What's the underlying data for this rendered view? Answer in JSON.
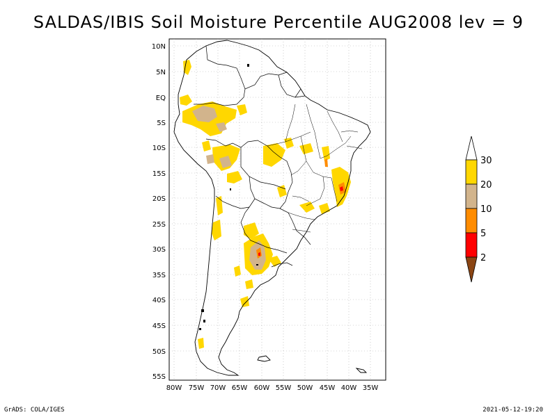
{
  "title": "SALDAS/IBIS Soil Moisture Percentile AUG2008 lev = 9",
  "footer": {
    "left": "GrADS: COLA/IGES",
    "right": "2021-05-12-19:20"
  },
  "axes": {
    "lat_labels": [
      "10N",
      "5N",
      "EQ",
      "5S",
      "10S",
      "15S",
      "20S",
      "25S",
      "30S",
      "35S",
      "40S",
      "45S",
      "50S",
      "55S"
    ],
    "lon_labels": [
      "80W",
      "75W",
      "70W",
      "65W",
      "60W",
      "55W",
      "50W",
      "45W",
      "40W",
      "35W"
    ]
  },
  "legend": {
    "labels": [
      "30",
      "20",
      "10",
      "5",
      "2"
    ],
    "colors": {
      "c30": "#ffd700",
      "c20": "#d2b48c",
      "c10": "#ff8c00",
      "c5": "#ff0000",
      "c2": "#8b4513"
    }
  },
  "colors": {
    "frame": "#000000",
    "grid": "#aaaaaa",
    "coast": "#000000"
  }
}
